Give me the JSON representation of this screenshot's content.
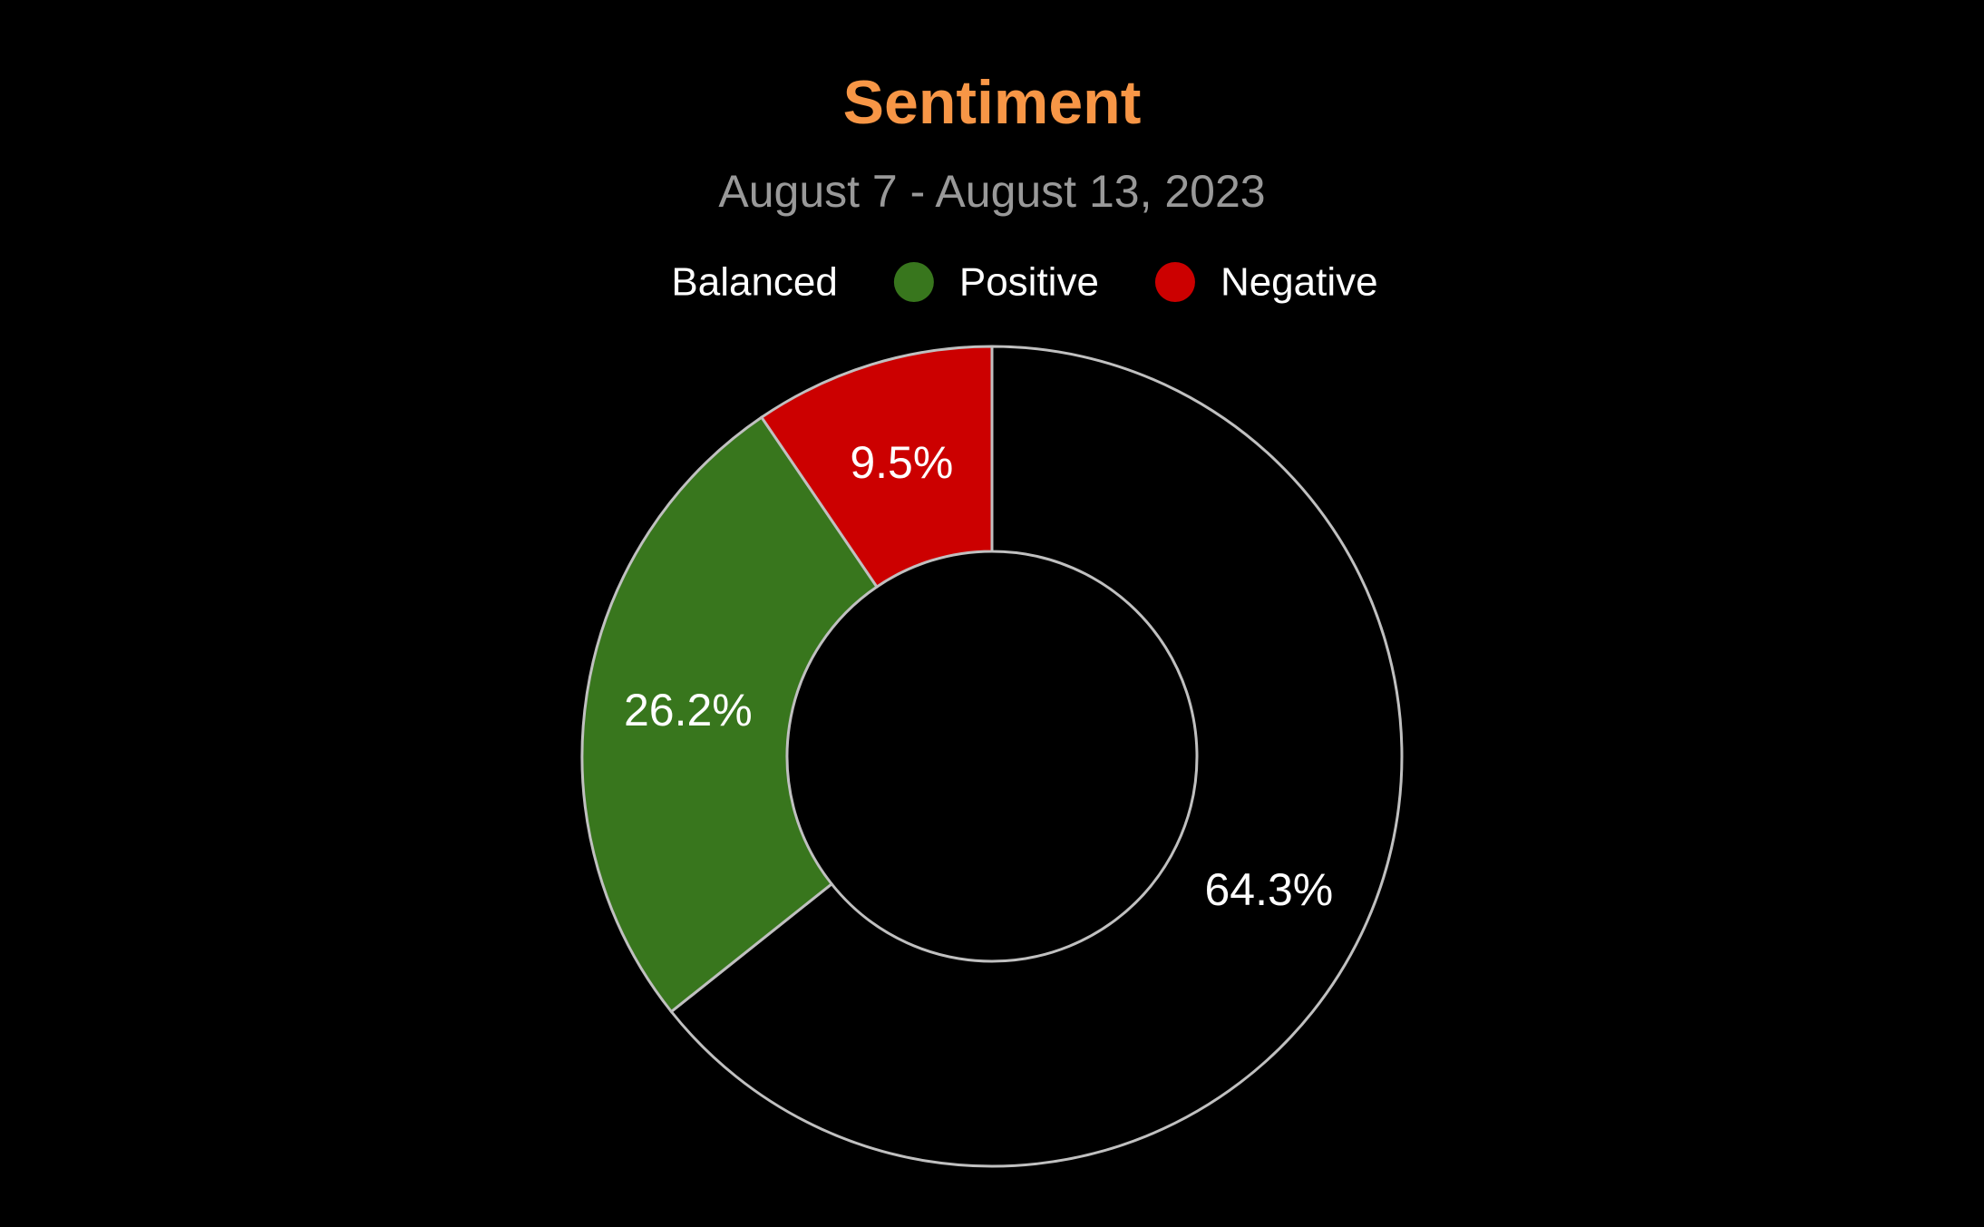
{
  "chart_data": {
    "type": "pie",
    "title": "Sentiment",
    "subtitle": "August 7 - August 13, 2023",
    "donut": true,
    "legend_position": "top",
    "slices": [
      {
        "name": "Balanced",
        "value": 64.3,
        "label": "64.3%",
        "color": "#000000"
      },
      {
        "name": "Positive",
        "value": 26.2,
        "label": "26.2%",
        "color": "#38761d"
      },
      {
        "name": "Negative",
        "value": 9.5,
        "label": "9.5%",
        "color": "#cc0000"
      }
    ],
    "colors": {
      "background": "#000000",
      "title": "#f79646",
      "subtitle": "#999999",
      "legend_text": "#ffffff",
      "data_label": "#ffffff",
      "slice_border": "#c0c0c0"
    }
  }
}
